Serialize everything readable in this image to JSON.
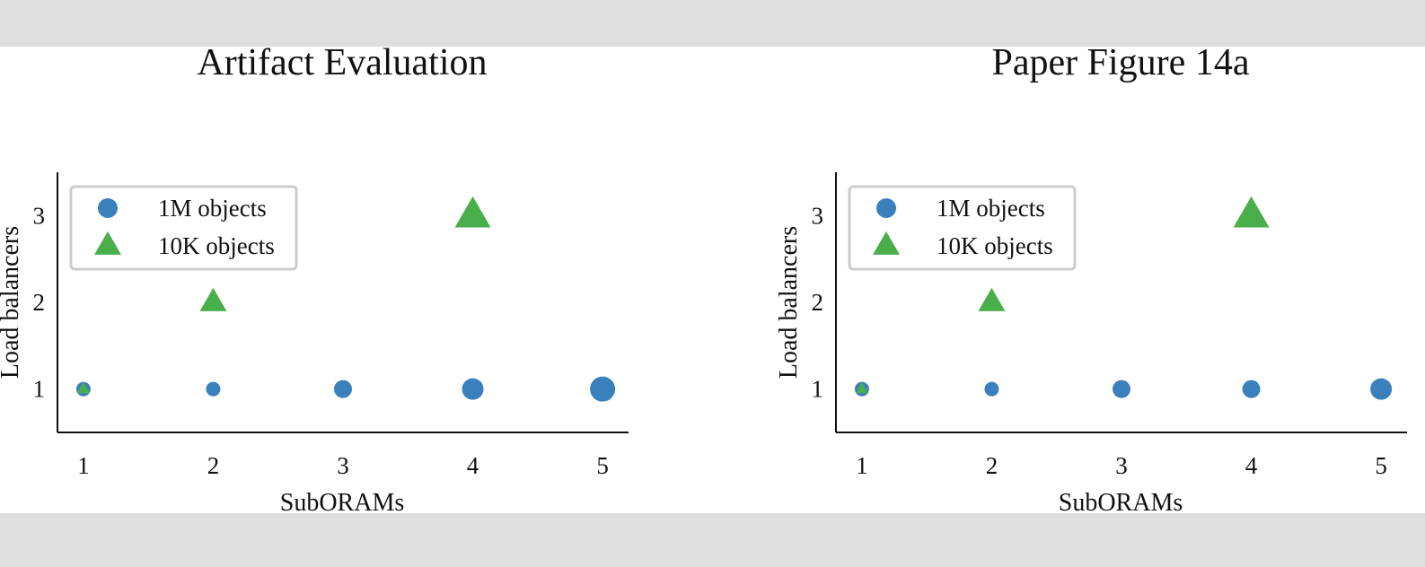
{
  "colors": {
    "series_1m": "#3a80bd",
    "series_10k": "#4aae4a",
    "axis": "#111111",
    "legend_border": "#cccccc"
  },
  "chart_data": [
    {
      "type": "scatter",
      "title": "Artifact Evaluation",
      "xlabel": "SubORAMs",
      "ylabel": "Load balancers",
      "x_ticks": [
        "1",
        "2",
        "3",
        "4",
        "5"
      ],
      "y_ticks": [
        "1",
        "2",
        "3"
      ],
      "xlim": [
        0.8,
        5.2
      ],
      "ylim": [
        0.5,
        3.5
      ],
      "grid": false,
      "legend_position": "upper-left",
      "series": [
        {
          "name": "1M objects",
          "marker": "circle",
          "points": [
            {
              "x": 1,
              "y": 1,
              "size": 2
            },
            {
              "x": 2,
              "y": 1,
              "size": 2
            },
            {
              "x": 3,
              "y": 1,
              "size": 3
            },
            {
              "x": 4,
              "y": 1,
              "size": 4
            },
            {
              "x": 5,
              "y": 1,
              "size": 5
            }
          ]
        },
        {
          "name": "10K objects",
          "marker": "triangle",
          "points": [
            {
              "x": 1,
              "y": 1,
              "size": 1
            },
            {
              "x": 2,
              "y": 2,
              "size": 2
            },
            {
              "x": 4,
              "y": 3,
              "size": 4
            }
          ]
        }
      ]
    },
    {
      "type": "scatter",
      "title": "Paper Figure 14a",
      "xlabel": "SubORAMs",
      "ylabel": "Load balancers",
      "x_ticks": [
        "1",
        "2",
        "3",
        "4",
        "5"
      ],
      "y_ticks": [
        "1",
        "2",
        "3"
      ],
      "xlim": [
        0.8,
        5.2
      ],
      "ylim": [
        0.5,
        3.5
      ],
      "grid": false,
      "legend_position": "upper-left",
      "series": [
        {
          "name": "1M objects",
          "marker": "circle",
          "points": [
            {
              "x": 1,
              "y": 1,
              "size": 2
            },
            {
              "x": 2,
              "y": 1,
              "size": 2
            },
            {
              "x": 3,
              "y": 1,
              "size": 3
            },
            {
              "x": 4,
              "y": 1,
              "size": 3
            },
            {
              "x": 5,
              "y": 1,
              "size": 4
            }
          ]
        },
        {
          "name": "10K objects",
          "marker": "triangle",
          "points": [
            {
              "x": 1,
              "y": 1,
              "size": 1
            },
            {
              "x": 2,
              "y": 2,
              "size": 2
            },
            {
              "x": 4,
              "y": 3,
              "size": 4
            }
          ]
        }
      ]
    }
  ]
}
